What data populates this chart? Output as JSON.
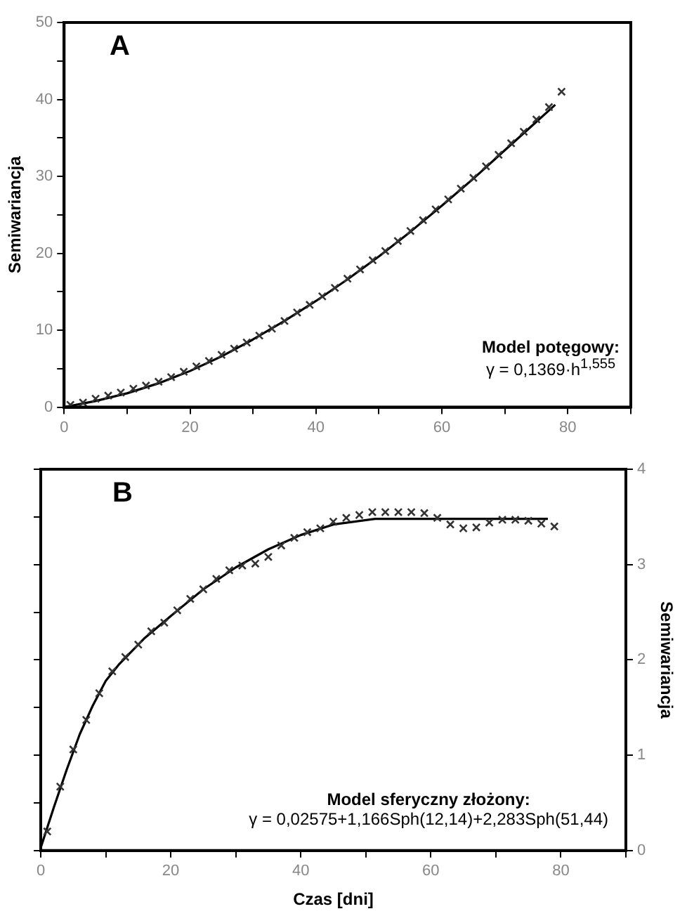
{
  "chart_data": [
    {
      "type": "scatter",
      "ylabel": "Semiwariancja",
      "xlim": [
        0,
        90
      ],
      "xticks": [
        0,
        {
          "value": 10,
          "label": null
        },
        20,
        {
          "value": 30,
          "label": null
        },
        40,
        {
          "value": 50,
          "label": null
        },
        60,
        {
          "value": 70,
          "label": null
        },
        80,
        {
          "value": 90,
          "label": null
        }
      ],
      "ylim": [
        0,
        50
      ],
      "yticks": [
        0,
        {
          "value": 5,
          "label": null
        },
        10,
        {
          "value": 15,
          "label": null
        },
        20,
        {
          "value": 25,
          "label": null
        },
        30,
        {
          "value": 35,
          "label": null
        },
        40,
        {
          "value": 45,
          "label": null
        },
        50
      ],
      "grid": false,
      "legend": false,
      "annotations": [
        "A",
        "Model potęgowy:",
        "γ = 0,1369·h$^{1,555}$"
      ],
      "series": [
        {
          "type": "scatter",
          "marker": "cross",
          "color": "#333333",
          "x": [
            1,
            3,
            5,
            7,
            9,
            11,
            13,
            15,
            17,
            19,
            21,
            23,
            25,
            27,
            29,
            31,
            33,
            35,
            37,
            39,
            41,
            43,
            45,
            47,
            49,
            51,
            53,
            55,
            57,
            59,
            61,
            63,
            65,
            67,
            69,
            71,
            73,
            75,
            77,
            79
          ],
          "values": [
            0.3,
            0.6,
            1.1,
            1.5,
            1.9,
            2.4,
            2.8,
            3.3,
            3.9,
            4.6,
            5.3,
            6.0,
            6.8,
            7.6,
            8.4,
            9.3,
            10.2,
            11.2,
            12.3,
            13.3,
            14.4,
            15.5,
            16.7,
            17.9,
            19.1,
            20.3,
            21.6,
            22.9,
            24.3,
            25.7,
            27.0,
            28.4,
            29.8,
            31.3,
            32.8,
            34.3,
            35.8,
            37.4,
            39.0,
            41.0
          ]
        },
        {
          "type": "line",
          "marker": "none",
          "line_style": "solid",
          "color": "#000000",
          "x": [
            0,
            5,
            10,
            15,
            20,
            25,
            30,
            35,
            40,
            45,
            50,
            55,
            60,
            65,
            70,
            78
          ],
          "values": [
            0,
            0.8,
            1.8,
            3.1,
            4.7,
            6.6,
            8.8,
            11.2,
            13.8,
            16.6,
            19.6,
            22.8,
            26.2,
            29.7,
            33.4,
            39.3
          ]
        }
      ]
    },
    {
      "type": "scatter",
      "xlabel": "Czas [dni]",
      "y2label": "Semiwariancja",
      "xlim": [
        0,
        90
      ],
      "xticks": [
        0,
        {
          "value": 10,
          "label": null
        },
        20,
        {
          "value": 30,
          "label": null
        },
        40,
        {
          "value": 50,
          "label": null
        },
        60,
        {
          "value": 70,
          "label": null
        },
        80,
        {
          "value": 90,
          "label": null
        }
      ],
      "y2lim": [
        0,
        4
      ],
      "y2ticks": [
        0,
        1,
        2,
        3,
        4
      ],
      "grid": false,
      "legend": false,
      "annotations": [
        "B",
        "Model sferyczny złożony:",
        "γ = 0,02575+1,166Sph(12,14)+2,283Sph(51,44)"
      ],
      "series": [
        {
          "type": "scatter",
          "marker": "cross",
          "axis": "y2",
          "color": "#333333",
          "x": [
            1,
            3,
            5,
            7,
            9,
            11,
            13,
            15,
            17,
            19,
            21,
            23,
            25,
            27,
            29,
            31,
            33,
            35,
            37,
            39,
            41,
            43,
            45,
            47,
            49,
            51,
            53,
            55,
            57,
            59,
            61,
            63,
            65,
            67,
            69,
            71,
            73,
            75,
            77,
            79
          ],
          "values": [
            0.2,
            0.67,
            1.06,
            1.37,
            1.65,
            1.88,
            2.03,
            2.16,
            2.3,
            2.39,
            2.52,
            2.64,
            2.74,
            2.85,
            2.94,
            2.99,
            3.01,
            3.08,
            3.2,
            3.28,
            3.34,
            3.38,
            3.45,
            3.49,
            3.52,
            3.55,
            3.55,
            3.55,
            3.55,
            3.54,
            3.49,
            3.42,
            3.38,
            3.39,
            3.44,
            3.47,
            3.47,
            3.46,
            3.43,
            3.4
          ]
        },
        {
          "type": "line",
          "marker": "none",
          "line_style": "solid",
          "axis": "y2",
          "color": "#000000",
          "x": [
            0,
            2,
            4,
            6,
            8,
            10,
            12,
            16,
            20,
            25,
            30,
            35,
            40,
            45,
            51.44,
            78
          ],
          "values": [
            0.03,
            0.45,
            0.85,
            1.22,
            1.52,
            1.78,
            1.95,
            2.23,
            2.46,
            2.74,
            2.97,
            3.16,
            3.31,
            3.42,
            3.48,
            3.48
          ]
        }
      ]
    }
  ]
}
